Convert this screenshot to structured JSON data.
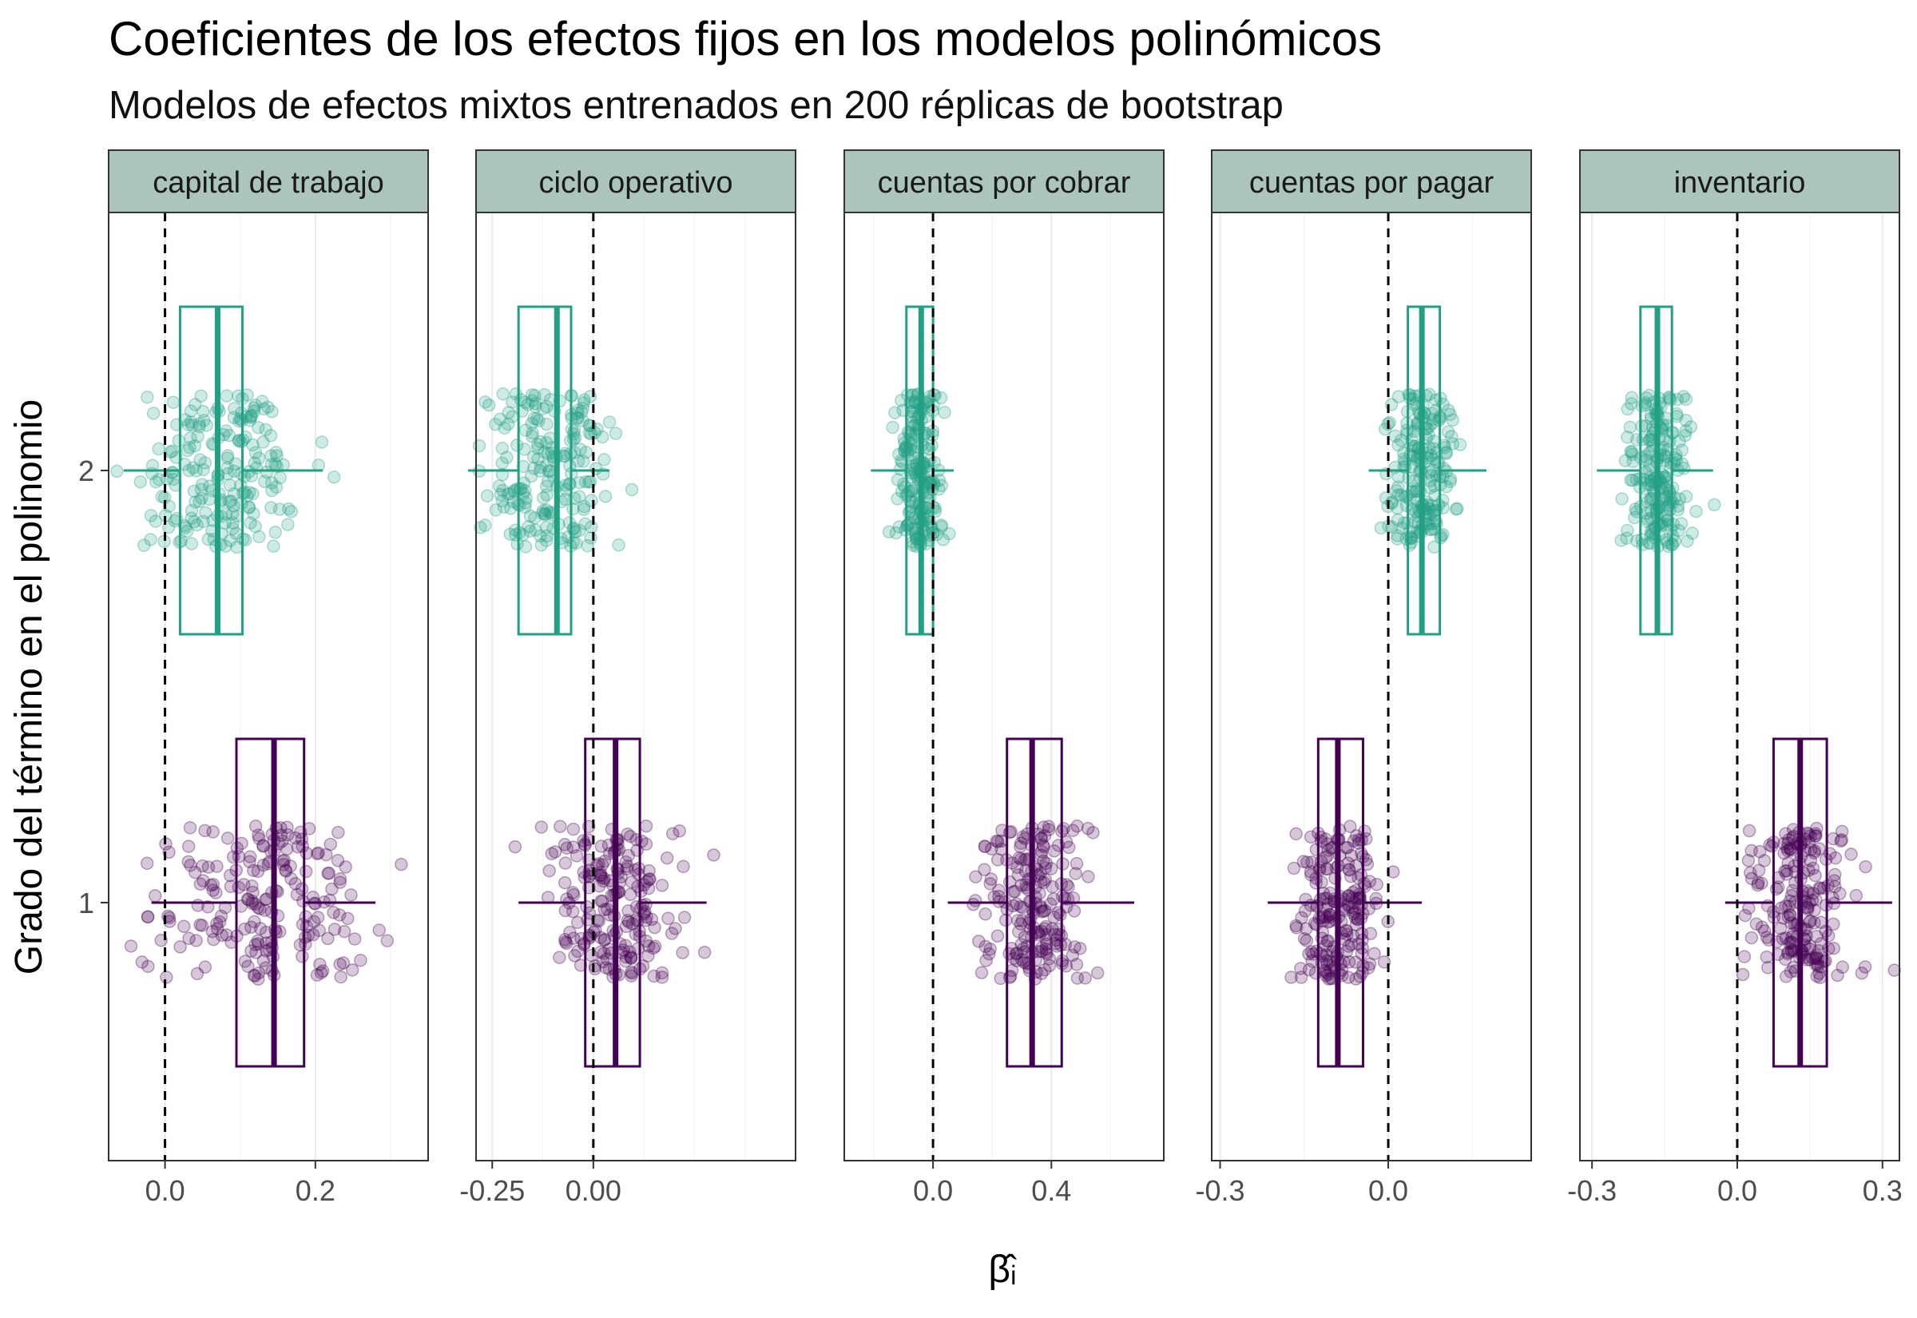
{
  "chart_data": {
    "type": "boxplot",
    "title": "Coeficientes de los efectos fijos en los modelos polinómicos",
    "subtitle": "Modelos de efectos mixtos entrenados en 200 réplicas de bootstrap",
    "xlabel": "β̂ᵢ",
    "ylabel": "Grado del término en el polinomio",
    "y_categories": [
      "1",
      "2"
    ],
    "reference_line_x": 0,
    "series_colors": {
      "1": "#440154",
      "2": "#21a083"
    },
    "strip_fill": "#abc4bc",
    "panels": [
      {
        "name": "capital de trabajo",
        "xlim": [
          -0.075,
          0.35
        ],
        "xticks": [
          0.0,
          0.2
        ],
        "tick_labels": [
          "0.0",
          "0.2"
        ],
        "boxes": [
          {
            "degree": "2",
            "whisker_low": -0.055,
            "q1": 0.02,
            "median": 0.07,
            "q3": 0.103,
            "whisker_high": 0.21,
            "center": 0.075,
            "spread": 0.09
          },
          {
            "degree": "1",
            "whisker_low": -0.018,
            "q1": 0.095,
            "median": 0.145,
            "q3": 0.185,
            "whisker_high": 0.28,
            "center": 0.14,
            "spread": 0.11
          }
        ]
      },
      {
        "name": "ciclo operativo",
        "xlim": [
          -0.29,
          0.5
        ],
        "xticks": [
          -0.25,
          0.0
        ],
        "tick_labels": [
          "-0.25",
          "0.00"
        ],
        "boxes": [
          {
            "degree": "2",
            "whisker_low": -0.31,
            "q1": -0.185,
            "median": -0.09,
            "q3": -0.055,
            "whisker_high": 0.04,
            "center": -0.115,
            "spread": 0.13
          },
          {
            "degree": "1",
            "whisker_low": -0.185,
            "q1": -0.02,
            "median": 0.055,
            "q3": 0.115,
            "whisker_high": 0.28,
            "center": 0.045,
            "spread": 0.14
          }
        ]
      },
      {
        "name": "cuentas por cobrar",
        "xlim": [
          -0.3,
          0.78
        ],
        "xticks": [
          0.0,
          0.4
        ],
        "tick_labels": [
          "0.0",
          "0.4"
        ],
        "boxes": [
          {
            "degree": "2",
            "whisker_low": -0.21,
            "q1": -0.09,
            "median": -0.04,
            "q3": 0.0,
            "whisker_high": 0.07,
            "center": -0.05,
            "spread": 0.06
          },
          {
            "degree": "1",
            "whisker_low": 0.05,
            "q1": 0.25,
            "median": 0.335,
            "q3": 0.435,
            "whisker_high": 0.68,
            "center": 0.35,
            "spread": 0.14
          }
        ]
      },
      {
        "name": "cuentas por pagar",
        "xlim": [
          -0.315,
          0.255
        ],
        "xticks": [
          -0.3,
          0.0
        ],
        "tick_labels": [
          "-0.3",
          "0.0"
        ],
        "boxes": [
          {
            "degree": "2",
            "whisker_low": -0.035,
            "q1": 0.035,
            "median": 0.06,
            "q3": 0.092,
            "whisker_high": 0.175,
            "center": 0.06,
            "spread": 0.055
          },
          {
            "degree": "1",
            "whisker_low": -0.215,
            "q1": -0.125,
            "median": -0.09,
            "q3": -0.045,
            "whisker_high": 0.06,
            "center": -0.085,
            "spread": 0.065
          }
        ]
      },
      {
        "name": "inventario",
        "xlim": [
          -0.325,
          0.335
        ],
        "xticks": [
          -0.3,
          0.0,
          0.3
        ],
        "tick_labels": [
          "-0.3",
          "0.0",
          "0.3"
        ],
        "boxes": [
          {
            "degree": "2",
            "whisker_low": -0.29,
            "q1": -0.2,
            "median": -0.165,
            "q3": -0.135,
            "whisker_high": -0.05,
            "center": -0.165,
            "spread": 0.05
          },
          {
            "degree": "1",
            "whisker_low": -0.025,
            "q1": 0.075,
            "median": 0.13,
            "q3": 0.185,
            "whisker_high": 0.32,
            "center": 0.13,
            "spread": 0.085
          }
        ]
      }
    ],
    "points_per_box": 200
  }
}
